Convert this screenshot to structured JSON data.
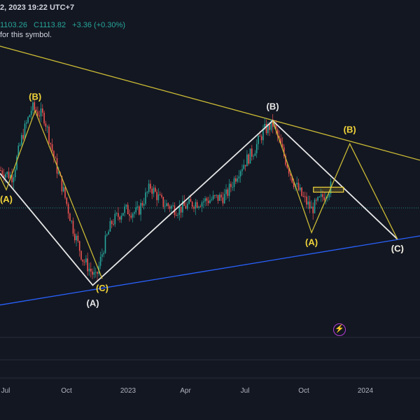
{
  "header": {
    "datetime": "2, 2023 19:22 UTC+7",
    "ohlc_low": "1103.26",
    "ohlc_close": "C1113.82",
    "change": "+3.36 (+0.30%)",
    "notice": "for this symbol."
  },
  "colors": {
    "background": "#131722",
    "candle_up": "#26a69a",
    "candle_down": "#ef5350",
    "wave_white": "#e6e6e6",
    "wave_yellow": "#c9b934",
    "label_yellow": "#f0d43a",
    "trend_blue": "#2962ff",
    "price_line": "#26a69a",
    "grid": "#1f2430"
  },
  "icons": [
    "lightning-icon"
  ],
  "chart_data": {
    "type": "candlestick",
    "title": "",
    "x_axis": {
      "tick_labels": [
        "Jul",
        "Oct",
        "2023",
        "Apr",
        "Jul",
        "Oct",
        "2024"
      ],
      "range": [
        "2022-06-15",
        "2024-04-15"
      ]
    },
    "y_axis": {
      "visible": false
    },
    "grid": false,
    "last_close": 1113.82,
    "price_path": [
      [
        "2022-06-15",
        0.6
      ],
      [
        "2022-07-05",
        0.58
      ],
      [
        "2022-07-20",
        0.7
      ],
      [
        "2022-08-05",
        0.79
      ],
      [
        "2022-08-25",
        0.76
      ],
      [
        "2022-09-10",
        0.63
      ],
      [
        "2022-09-25",
        0.53
      ],
      [
        "2022-10-10",
        0.42
      ],
      [
        "2022-10-25",
        0.33
      ],
      [
        "2022-11-15",
        0.27
      ],
      [
        "2022-11-28",
        0.37
      ],
      [
        "2022-12-10",
        0.44
      ],
      [
        "2022-12-30",
        0.48
      ],
      [
        "2023-01-20",
        0.47
      ],
      [
        "2023-02-10",
        0.55
      ],
      [
        "2023-03-01",
        0.5
      ],
      [
        "2023-03-25",
        0.48
      ],
      [
        "2023-04-20",
        0.5
      ],
      [
        "2023-05-15",
        0.51
      ],
      [
        "2023-06-10",
        0.52
      ],
      [
        "2023-07-01",
        0.6
      ],
      [
        "2023-07-25",
        0.66
      ],
      [
        "2023-08-10",
        0.72
      ],
      [
        "2023-08-25",
        0.74
      ],
      [
        "2023-09-10",
        0.65
      ],
      [
        "2023-09-25",
        0.57
      ],
      [
        "2023-10-10",
        0.52
      ],
      [
        "2023-10-25",
        0.48
      ],
      [
        "2023-11-08",
        0.51
      ],
      [
        "2023-11-25",
        0.55
      ]
    ],
    "wave_paths": [
      {
        "color": "white",
        "points": [
          [
            "2022-06-15",
            0.59
          ],
          [
            "2022-11-10",
            0.25
          ],
          [
            "2023-08-24",
            0.75
          ],
          [
            "2024-03-10",
            0.39
          ]
        ]
      },
      {
        "color": "yellow",
        "points": [
          [
            "2022-06-15",
            0.58
          ],
          [
            "2022-06-25",
            0.54
          ],
          [
            "2022-08-10",
            0.78
          ],
          [
            "2022-11-25",
            0.27
          ]
        ]
      },
      {
        "color": "yellow",
        "points": [
          [
            "2023-08-24",
            0.75
          ],
          [
            "2023-10-25",
            0.41
          ],
          [
            "2023-12-25",
            0.68
          ],
          [
            "2024-03-10",
            0.39
          ]
        ]
      }
    ],
    "trendlines": [
      {
        "color": "yellow",
        "from": [
          "2022-05-01",
          1.0
        ],
        "to": [
          "2024-04-15",
          0.63
        ]
      },
      {
        "color": "blue",
        "from": [
          "2022-06-15",
          0.19
        ],
        "to": [
          "2024-04-15",
          0.4
        ]
      }
    ],
    "box": {
      "from": [
        "2023-10-28",
        0.533
      ],
      "to": [
        "2023-12-15",
        0.548
      ]
    },
    "wave_labels": [
      {
        "text": "(A)",
        "color": "yellow",
        "at": [
          "2022-06-25",
          0.54
        ],
        "pos": "below"
      },
      {
        "text": "(B)",
        "color": "yellow",
        "at": [
          "2022-08-10",
          0.78
        ],
        "pos": "above"
      },
      {
        "text": "(C)",
        "color": "yellow",
        "at": [
          "2022-11-25",
          0.27
        ],
        "pos": "below"
      },
      {
        "text": "(A)",
        "color": "white",
        "at": [
          "2022-11-10",
          0.25
        ],
        "pos": "below-far"
      },
      {
        "text": "(B)",
        "color": "white",
        "at": [
          "2023-08-24",
          0.75
        ],
        "pos": "above"
      },
      {
        "text": "(A)",
        "color": "yellow",
        "at": [
          "2023-10-25",
          0.41
        ],
        "pos": "below"
      },
      {
        "text": "(B)",
        "color": "yellow",
        "at": [
          "2023-12-25",
          0.68
        ],
        "pos": "above"
      },
      {
        "text": "(C)",
        "color": "yellow",
        "at": [
          "2024-03-10",
          0.39
        ],
        "pos": "below"
      },
      {
        "text": "(C)",
        "color": "white",
        "at": [
          "2024-03-10",
          0.39
        ],
        "pos": "below"
      }
    ]
  }
}
